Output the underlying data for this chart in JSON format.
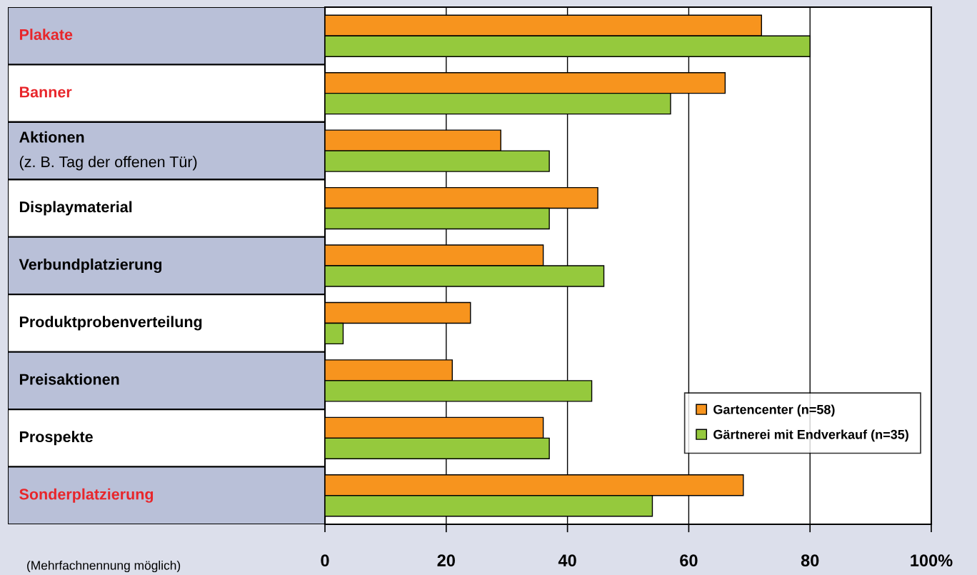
{
  "chart_data": {
    "type": "bar",
    "orientation": "horizontal",
    "categories": [
      "Plakate",
      "Banner",
      "Aktionen\n(z. B. Tag der offenen Tür)",
      "Displaymaterial",
      "Verbundplatzierung",
      "Produktprobenverteilung",
      "Preisaktionen",
      "Prospekte",
      "Sonderplatzierung"
    ],
    "series": [
      {
        "name": "Gartencenter (n=58)",
        "color": "#f7941e",
        "values": [
          72,
          66,
          29,
          45,
          36,
          24,
          21,
          36,
          69
        ]
      },
      {
        "name": "Gärtnerei mit Endverkauf (n=35)",
        "color": "#95c93d",
        "values": [
          80,
          57,
          37,
          37,
          46,
          3,
          44,
          37,
          54
        ]
      }
    ],
    "xlim": [
      0,
      100
    ],
    "xticks": [
      0,
      20,
      40,
      60,
      80,
      {
        "value": 100,
        "label": "100%"
      }
    ],
    "grid": "x",
    "legend": "bottom right",
    "annotations": [
      "(Mehrfachnennung möglich)"
    ]
  }
}
